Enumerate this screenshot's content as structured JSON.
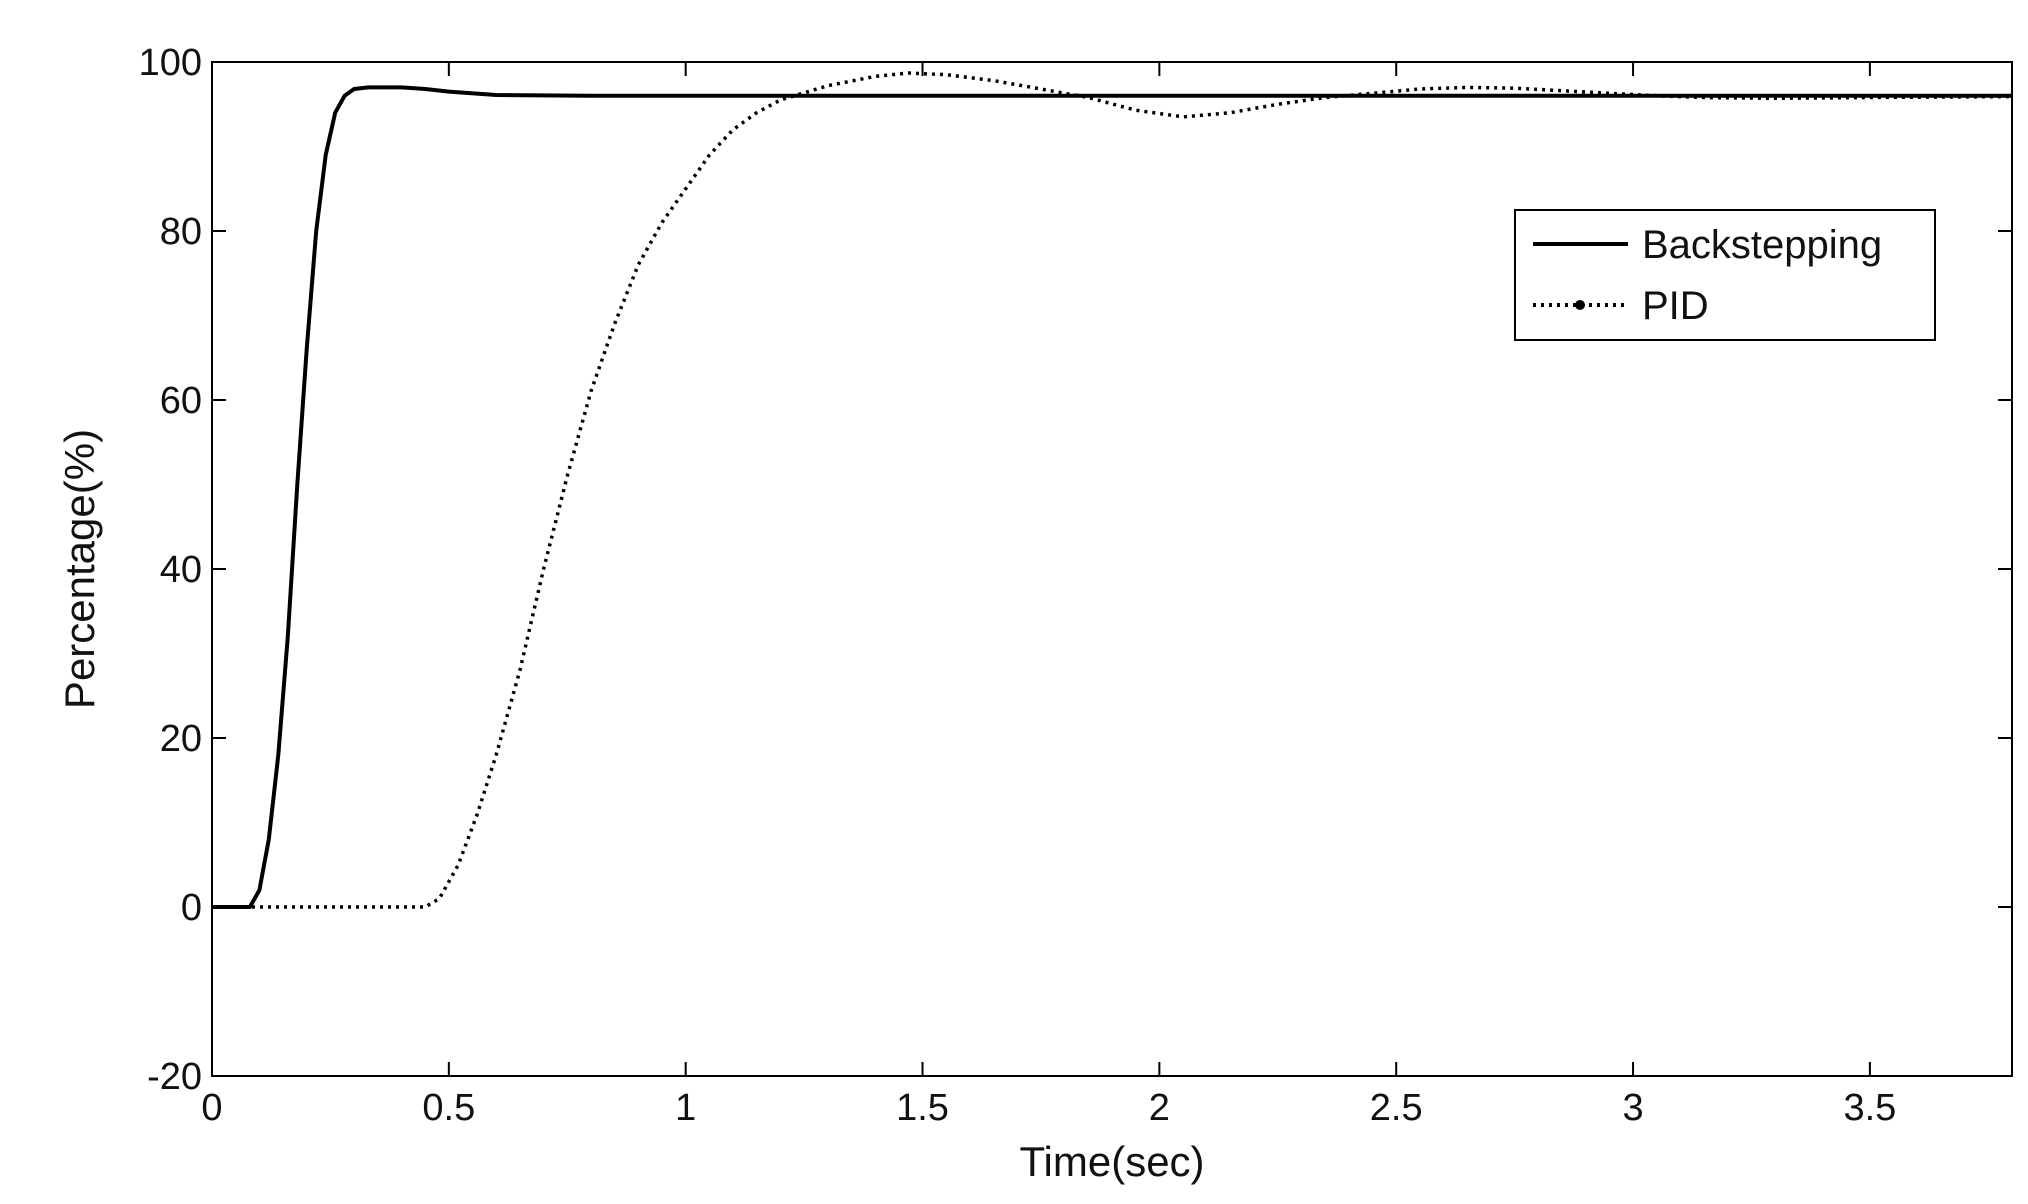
{
  "chart_data": {
    "type": "line",
    "title": "",
    "xlabel": "Time(sec)",
    "ylabel": "Percentage(%)",
    "xlim": [
      0,
      3.8
    ],
    "ylim": [
      -20,
      100
    ],
    "x_ticks": [
      0,
      0.5,
      1,
      1.5,
      2,
      2.5,
      3,
      3.5
    ],
    "x_tick_labels": [
      "0",
      "0.5",
      "1",
      "1.5",
      "2",
      "2.5",
      "3",
      "3.5"
    ],
    "y_ticks": [
      -20,
      0,
      20,
      40,
      60,
      80,
      100
    ],
    "y_tick_labels": [
      "-20",
      "0",
      "20",
      "40",
      "60",
      "80",
      "100"
    ],
    "grid": false,
    "legend_position": "upper-right",
    "series": [
      {
        "name": "Backstepping",
        "style": "solid",
        "color": "#000000",
        "points": [
          [
            0,
            0
          ],
          [
            0.08,
            0
          ],
          [
            0.1,
            2
          ],
          [
            0.12,
            8
          ],
          [
            0.14,
            18
          ],
          [
            0.16,
            32
          ],
          [
            0.18,
            50
          ],
          [
            0.2,
            66
          ],
          [
            0.22,
            80
          ],
          [
            0.24,
            89
          ],
          [
            0.26,
            94
          ],
          [
            0.28,
            96
          ],
          [
            0.3,
            96.8
          ],
          [
            0.33,
            97
          ],
          [
            0.4,
            97
          ],
          [
            0.45,
            96.8
          ],
          [
            0.5,
            96.5
          ],
          [
            0.6,
            96.1
          ],
          [
            0.8,
            96
          ],
          [
            1.5,
            96
          ],
          [
            2.5,
            96
          ],
          [
            3.8,
            96
          ]
        ]
      },
      {
        "name": "PID",
        "style": "dotted",
        "color": "#000000",
        "points": [
          [
            0,
            0
          ],
          [
            0.45,
            0
          ],
          [
            0.48,
            1
          ],
          [
            0.52,
            5
          ],
          [
            0.56,
            11
          ],
          [
            0.6,
            18
          ],
          [
            0.65,
            28
          ],
          [
            0.7,
            40
          ],
          [
            0.75,
            51
          ],
          [
            0.8,
            61
          ],
          [
            0.85,
            69
          ],
          [
            0.9,
            76
          ],
          [
            0.95,
            81
          ],
          [
            1.0,
            85
          ],
          [
            1.05,
            89
          ],
          [
            1.1,
            92
          ],
          [
            1.15,
            94
          ],
          [
            1.2,
            95.5
          ],
          [
            1.3,
            97.2
          ],
          [
            1.4,
            98.3
          ],
          [
            1.47,
            98.7
          ],
          [
            1.55,
            98.5
          ],
          [
            1.65,
            97.8
          ],
          [
            1.75,
            96.8
          ],
          [
            1.85,
            95.8
          ],
          [
            1.95,
            94.3
          ],
          [
            2.05,
            93.5
          ],
          [
            2.15,
            94
          ],
          [
            2.25,
            95
          ],
          [
            2.35,
            95.8
          ],
          [
            2.45,
            96.3
          ],
          [
            2.55,
            96.8
          ],
          [
            2.65,
            97
          ],
          [
            2.75,
            96.9
          ],
          [
            2.85,
            96.6
          ],
          [
            2.95,
            96.3
          ],
          [
            3.05,
            96
          ],
          [
            3.15,
            95.8
          ],
          [
            3.3,
            95.7
          ],
          [
            3.5,
            95.8
          ],
          [
            3.8,
            95.9
          ]
        ]
      }
    ]
  }
}
